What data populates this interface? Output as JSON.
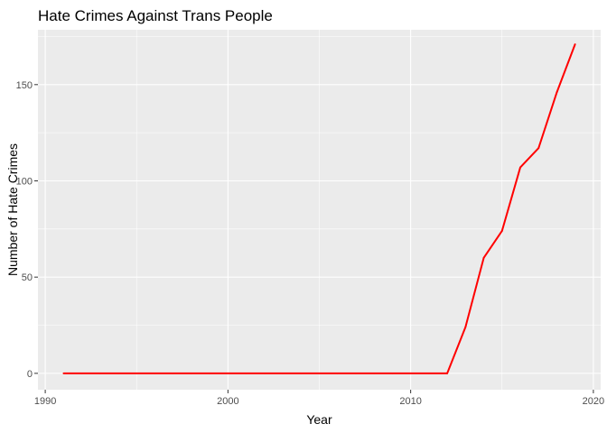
{
  "chart_data": {
    "type": "line",
    "title": "Hate Crimes Against Trans People",
    "xlabel": "Year",
    "ylabel": "Number of Hate Crimes",
    "xlim": [
      1989.6,
      2020.4
    ],
    "ylim": [
      -8.5,
      178.5
    ],
    "x_ticks": [
      1990,
      2000,
      2010,
      2020
    ],
    "y_ticks": [
      0,
      50,
      100,
      150
    ],
    "grid": true,
    "colors": {
      "line": "#ff0000",
      "panel": "#ebebeb",
      "grid": "#ffffff",
      "tick_text": "#4d4d4d"
    },
    "series": [
      {
        "x": [
          1991,
          1992,
          1993,
          1994,
          1995,
          1996,
          1997,
          1998,
          1999,
          2000,
          2001,
          2002,
          2003,
          2004,
          2005,
          2006,
          2007,
          2008,
          2009,
          2010,
          2011,
          2012,
          2013,
          2014,
          2015,
          2016,
          2017,
          2018,
          2019
        ],
        "values": [
          0,
          0,
          0,
          0,
          0,
          0,
          0,
          0,
          0,
          0,
          0,
          0,
          0,
          0,
          0,
          0,
          0,
          0,
          0,
          0,
          0,
          0,
          24,
          60,
          74,
          107,
          117,
          146,
          171
        ]
      }
    ]
  }
}
